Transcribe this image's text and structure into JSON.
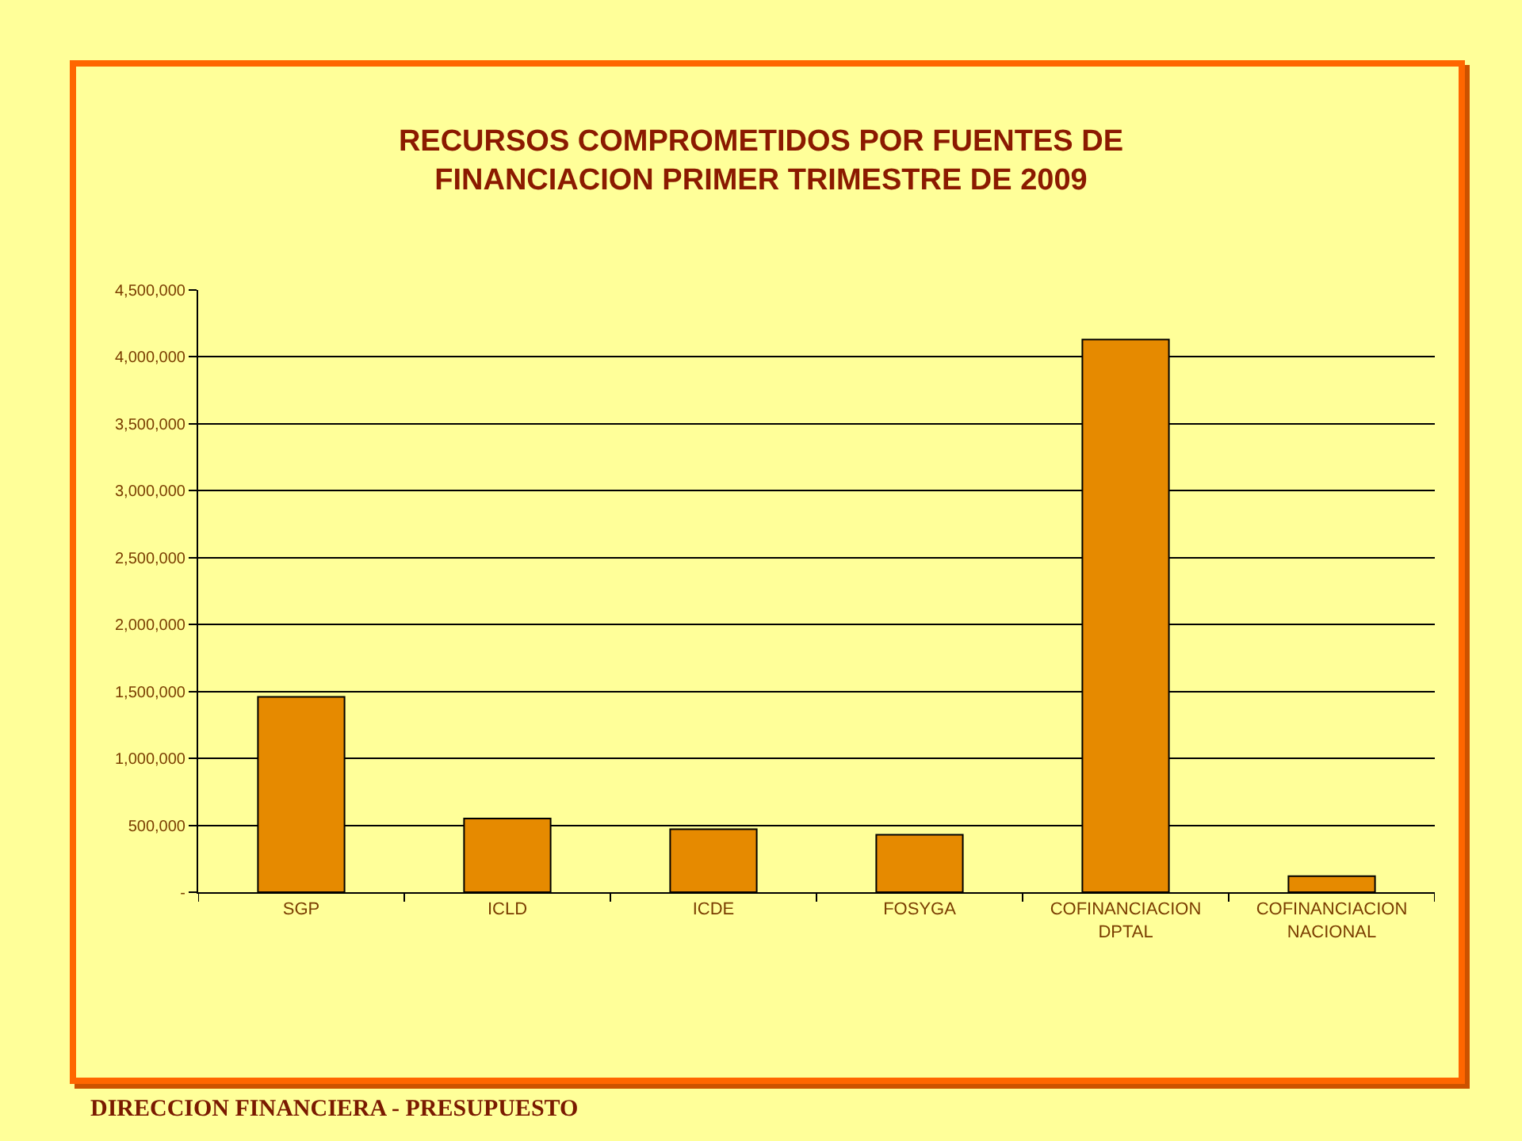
{
  "chart_data": {
    "type": "bar",
    "title": "RECURSOS COMPROMETIDOS POR FUENTES DE\nFINANCIACION PRIMER TRIMESTRE DE 2009",
    "categories": [
      "SGP",
      "ICLD",
      "ICDE",
      "FOSYGA",
      "COFINANCIACION DPTAL",
      "COFINANCIACION NACIONAL"
    ],
    "values": [
      1460000,
      550000,
      470000,
      430000,
      4130000,
      120000
    ],
    "color": "#e68a00",
    "ylim": [
      0,
      4500000
    ],
    "yticks": [
      {
        "value": 0,
        "label": "-"
      },
      {
        "value": 500000,
        "label": "500,000"
      },
      {
        "value": 1000000,
        "label": "1,000,000"
      },
      {
        "value": 1500000,
        "label": "1,500,000"
      },
      {
        "value": 2000000,
        "label": "2,000,000"
      },
      {
        "value": 2500000,
        "label": "2,500,000"
      },
      {
        "value": 3000000,
        "label": "3,000,000"
      },
      {
        "value": 3500000,
        "label": "3,500,000"
      },
      {
        "value": 4000000,
        "label": "4,000,000"
      },
      {
        "value": 4500000,
        "label": "4,500,000"
      }
    ],
    "grid": "y",
    "annotations": [
      "DIRECCION FINANCIERA - PRESUPUESTO"
    ]
  }
}
